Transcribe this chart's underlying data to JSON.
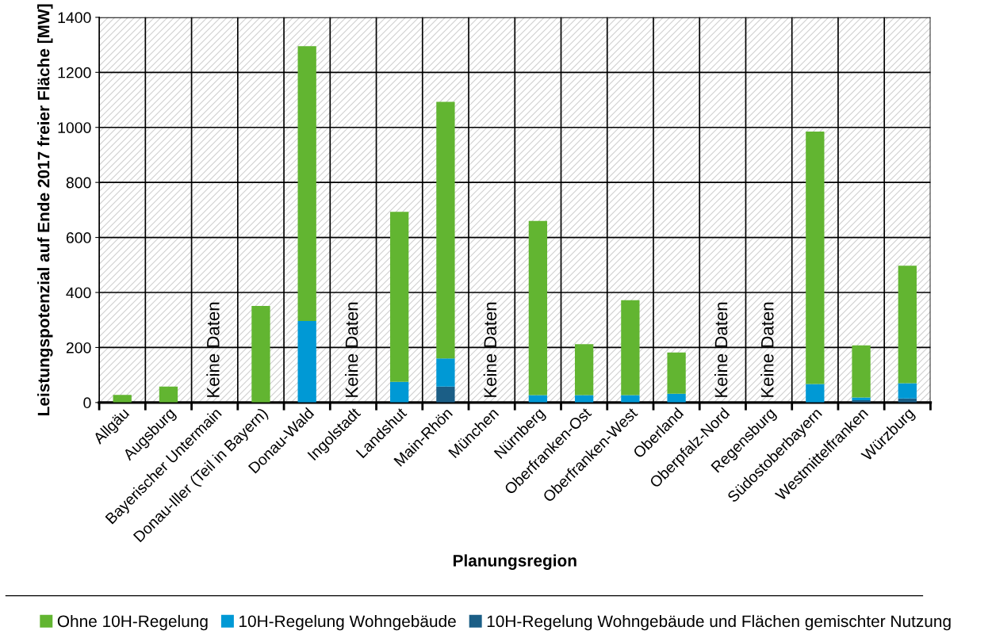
{
  "chart_data": {
    "type": "bar",
    "stacked": true,
    "xlabel": "Planungsregion",
    "ylabel": "Leistungspotenzial auf Ende 2017 freier Fläche [MW]",
    "categories": [
      "Allgäu",
      "Augsburg",
      "Bayerischer Untermain",
      "Donau-Iller (Teil in Bayern)",
      "Donau-Wald",
      "Ingolstadt",
      "Landshut",
      "Main-Rhön",
      "München",
      "Nürnberg",
      "Oberfranken-Ost",
      "Oberfranken-West",
      "Oberland",
      "Oberpfalz-Nord",
      "Regensburg",
      "Südostoberbayern",
      "Westmittelfranken",
      "Würzburg"
    ],
    "series": [
      {
        "name": "10H-Regelung Wohngebäude und Flächen gemischter Nutzung",
        "color": "#1b5e86",
        "values": [
          null,
          null,
          null,
          null,
          null,
          null,
          null,
          58,
          null,
          null,
          null,
          null,
          null,
          null,
          null,
          null,
          8,
          15
        ]
      },
      {
        "name": "10H-Regelung Wohngebäude",
        "color": "#0099d5",
        "values": [
          null,
          null,
          null,
          null,
          296,
          null,
          75,
          102,
          null,
          27,
          27,
          27,
          32,
          null,
          null,
          67,
          10,
          55
        ]
      },
      {
        "name": "Ohne 10H-Regelung",
        "color": "#62b531",
        "values": [
          28,
          58,
          null,
          351,
          999,
          null,
          618,
          933,
          null,
          633,
          185,
          345,
          150,
          null,
          null,
          918,
          190,
          427
        ]
      }
    ],
    "ylim": [
      0,
      1400
    ],
    "yticks": [
      0,
      200,
      400,
      600,
      800,
      1000,
      1200,
      1400
    ],
    "grid": true,
    "legend": "bottom",
    "annotations": [
      "Keine Daten",
      "Keine Daten",
      "Keine Daten",
      "Keine Daten",
      "Keine Daten"
    ]
  }
}
